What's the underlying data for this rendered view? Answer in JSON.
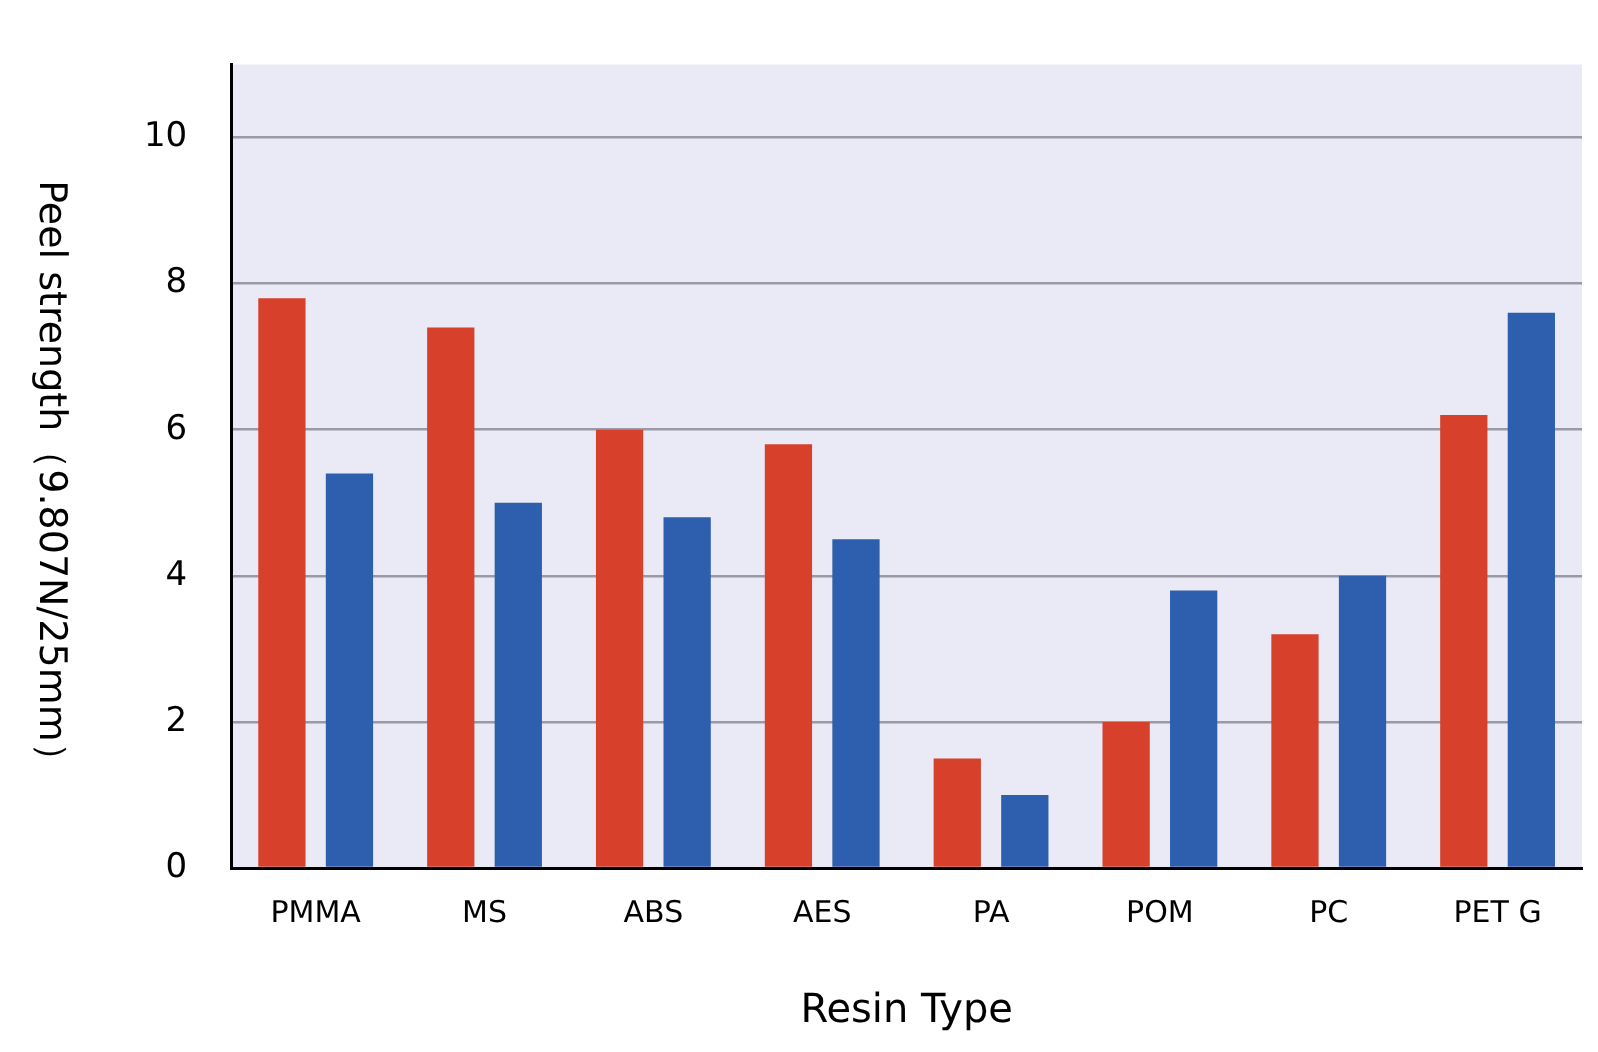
{
  "chart_data": {
    "type": "bar",
    "xlabel": "Resin Type",
    "ylabel": "Peel strength（9.807N/25mm）",
    "categories": [
      "PMMA",
      "MS",
      "ABS",
      "AES",
      "PA",
      "POM",
      "PC",
      "PET G"
    ],
    "series": [
      {
        "color": "#d7412b",
        "values": [
          7.8,
          7.4,
          6.0,
          5.8,
          1.5,
          2.0,
          3.2,
          6.2
        ]
      },
      {
        "color": "#2e5eae",
        "values": [
          5.4,
          5.0,
          4.8,
          4.5,
          1.0,
          3.8,
          4.0,
          7.6
        ]
      }
    ],
    "ylim": [
      0,
      11
    ],
    "yticks": [
      0,
      2,
      4,
      6,
      8,
      10
    ],
    "grid": "y",
    "legend": false
  }
}
